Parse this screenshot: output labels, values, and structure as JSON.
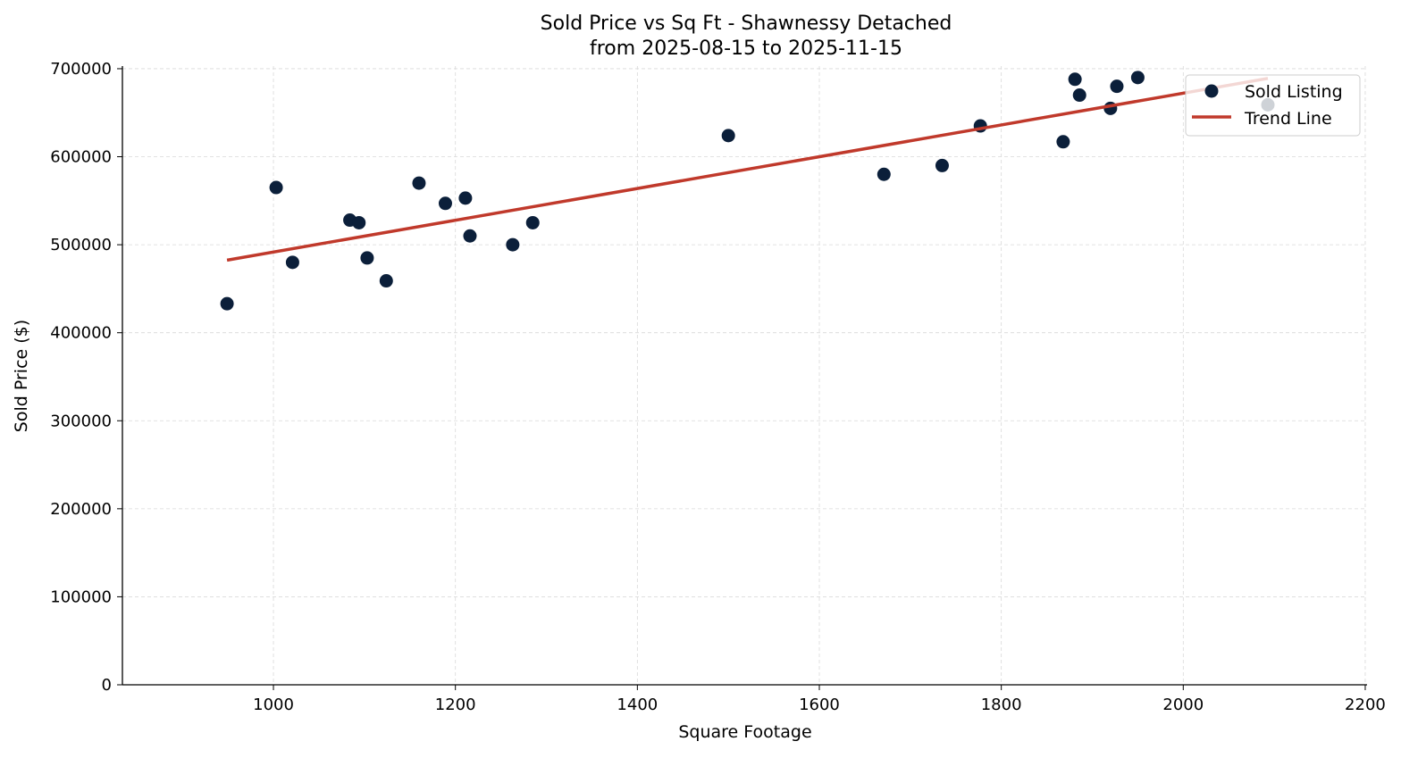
{
  "chart_data": {
    "type": "scatter",
    "title": "Sold Price vs Sq Ft - Shawnessy Detached",
    "subtitle": "from 2025-08-15 to 2025-11-15",
    "xlabel": "Square Footage",
    "ylabel": "Sold Price ($)",
    "xlim": [
      834,
      2202
    ],
    "ylim": [
      0,
      703000
    ],
    "xticks": [
      1000,
      1200,
      1400,
      1600,
      1800,
      2000,
      2200
    ],
    "yticks": [
      0,
      100000,
      200000,
      300000,
      400000,
      500000,
      600000,
      700000
    ],
    "grid": true,
    "legend_position": "top-right",
    "series": [
      {
        "name": "Sold Listing",
        "kind": "scatter",
        "color": "#0b1f3a",
        "points": [
          [
            949,
            433000
          ],
          [
            1003,
            565000
          ],
          [
            1021,
            480000
          ],
          [
            1084,
            528000
          ],
          [
            1094,
            525000
          ],
          [
            1103,
            485000
          ],
          [
            1124,
            459000
          ],
          [
            1160,
            570000
          ],
          [
            1189,
            547000
          ],
          [
            1211,
            553000
          ],
          [
            1216,
            510000
          ],
          [
            1263,
            500000
          ],
          [
            1285,
            525000
          ],
          [
            1500,
            624000
          ],
          [
            1671,
            580000
          ],
          [
            1735,
            590000
          ],
          [
            1777,
            635000
          ],
          [
            1868,
            617000
          ],
          [
            1881,
            688000
          ],
          [
            1886,
            670000
          ],
          [
            1920,
            655000
          ],
          [
            1927,
            680000
          ],
          [
            1950,
            690000
          ],
          [
            2093,
            659000
          ]
        ]
      },
      {
        "name": "Trend Line",
        "kind": "line",
        "color": "#c0392b",
        "points": [
          [
            949,
            482500
          ],
          [
            2093,
            689000
          ]
        ]
      }
    ]
  }
}
